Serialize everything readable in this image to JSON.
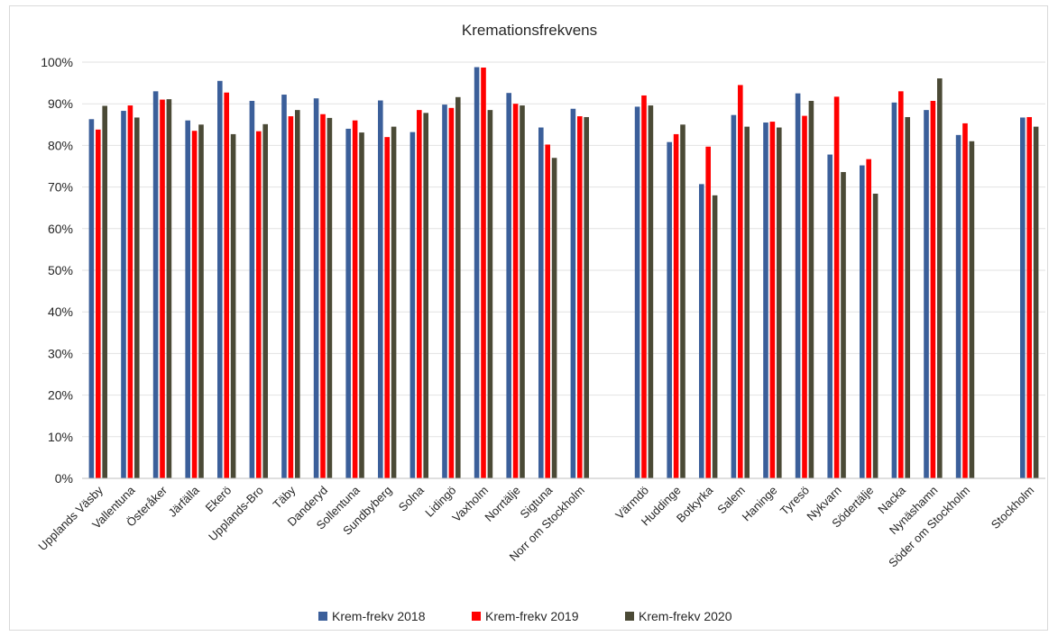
{
  "chart_data": {
    "type": "bar",
    "title": "Kremationsfrekvens",
    "xlabel": "",
    "ylabel": "",
    "ylim": [
      0,
      100
    ],
    "yticks": [
      "0%",
      "10%",
      "20%",
      "30%",
      "40%",
      "50%",
      "60%",
      "70%",
      "80%",
      "90%",
      "100%"
    ],
    "grid": true,
    "legend_position": "bottom",
    "categories": [
      "Upplands Väsby",
      "Vallentuna",
      "Österåker",
      "Järfälla",
      "Ekerö",
      "Upplands-Bro",
      "Täby",
      "Danderyd",
      "Sollentuna",
      "Sundbyberg",
      "Solna",
      "Lidingö",
      "Vaxholm",
      "Norrtälje",
      "Sigtuna",
      "Norr om Stockholm",
      "",
      "Värmdö",
      "Huddinge",
      "Botkyrka",
      "Salem",
      "Haninge",
      "Tyresö",
      "Nykvarn",
      "Södertälje",
      "Nacka",
      "Nynäshamn",
      "Söder om Stockholm",
      "",
      "Stockholm"
    ],
    "series": [
      {
        "name": "Krem-frekv 2018",
        "color": "#3b5f9a",
        "values": [
          86.3,
          88.3,
          93.0,
          86.0,
          95.5,
          90.7,
          92.2,
          91.3,
          84.0,
          90.8,
          83.2,
          89.8,
          98.8,
          92.6,
          84.3,
          88.8,
          null,
          89.3,
          80.8,
          70.7,
          87.3,
          85.5,
          92.5,
          77.8,
          75.2,
          90.3,
          88.5,
          82.5,
          null,
          86.7
        ]
      },
      {
        "name": "Krem-frekv 2019",
        "color": "#ff0000",
        "values": [
          83.8,
          89.6,
          91.0,
          83.5,
          92.7,
          83.4,
          87.0,
          87.5,
          86.0,
          82.0,
          88.5,
          89.0,
          98.7,
          90.0,
          80.2,
          87.0,
          null,
          92.0,
          82.7,
          79.7,
          94.5,
          85.7,
          87.1,
          91.7,
          76.7,
          93.0,
          90.7,
          85.3,
          null,
          86.8
        ]
      },
      {
        "name": "Krem-frekv 2020",
        "color": "#4b4a36",
        "values": [
          89.5,
          86.7,
          91.1,
          85.0,
          82.7,
          85.1,
          88.5,
          86.6,
          83.1,
          84.5,
          87.8,
          91.6,
          88.5,
          89.6,
          77.0,
          86.8,
          null,
          89.6,
          85.0,
          68.0,
          84.5,
          84.3,
          90.7,
          73.6,
          68.4,
          86.8,
          96.1,
          81.0,
          null,
          84.5
        ]
      }
    ]
  }
}
